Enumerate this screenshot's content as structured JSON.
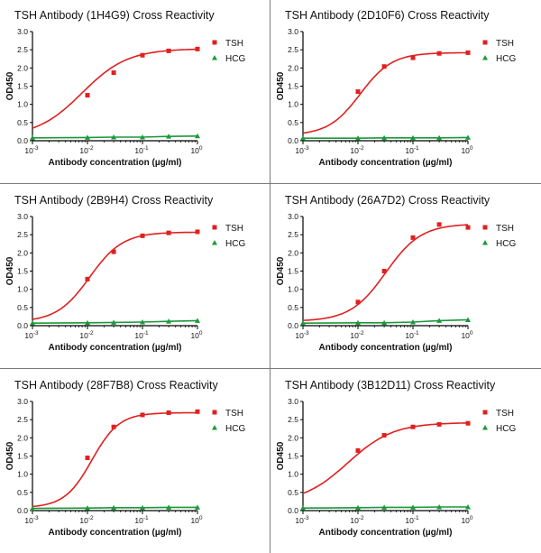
{
  "colors": {
    "tsh": "#e02020",
    "hcg": "#1a9a3a",
    "border": "#7a7a7a"
  },
  "chart_data": [
    {
      "type": "scatter",
      "title": "TSH Antibody (1H4G9) Cross Reactivity",
      "xlabel": "Antibody concentration (µg/ml)",
      "ylabel": "OD450",
      "x_scale": "log",
      "xlim": [
        0.001,
        1
      ],
      "ylim": [
        0,
        3
      ],
      "yticks": [
        "0.0",
        "0.5",
        "1.0",
        "1.5",
        "2.0",
        "2.5",
        "3.0"
      ],
      "xticks": [
        "10-3",
        "10-2",
        "10-1",
        "100"
      ],
      "legend": "top-right",
      "grid": false,
      "series": [
        {
          "name": "TSH",
          "marker": "square",
          "fit": {
            "bottom": 0.1,
            "top": 2.53,
            "ec50": 0.008,
            "hill": 1.05
          },
          "x": [
            0.01,
            0.03,
            0.1,
            0.3,
            1
          ],
          "y": [
            1.25,
            1.87,
            2.35,
            2.47,
            2.52
          ]
        },
        {
          "name": "HCG",
          "marker": "triangle",
          "x": [
            0.001,
            0.01,
            0.03,
            0.1,
            0.3,
            1
          ],
          "y": [
            0.08,
            0.09,
            0.1,
            0.1,
            0.12,
            0.13
          ]
        }
      ]
    },
    {
      "type": "scatter",
      "title": "TSH Antibody (2D10F6) Cross Reactivity",
      "xlabel": "Antibody concentration (µg/ml)",
      "ylabel": "OD450",
      "x_scale": "log",
      "xlim": [
        0.001,
        1
      ],
      "ylim": [
        0,
        3
      ],
      "yticks": [
        "0.0",
        "0.5",
        "1.0",
        "1.5",
        "2.0",
        "2.5",
        "3.0"
      ],
      "xticks": [
        "10-3",
        "10-2",
        "10-1",
        "100"
      ],
      "legend": "top-right",
      "grid": false,
      "series": [
        {
          "name": "TSH",
          "marker": "square",
          "fit": {
            "bottom": 0.15,
            "top": 2.42,
            "ec50": 0.011,
            "hill": 1.5
          },
          "x": [
            0.01,
            0.03,
            0.1,
            0.3,
            1
          ],
          "y": [
            1.35,
            2.04,
            2.28,
            2.4,
            2.42
          ]
        },
        {
          "name": "HCG",
          "marker": "triangle",
          "x": [
            0.001,
            0.01,
            0.03,
            0.1,
            0.3,
            1
          ],
          "y": [
            0.07,
            0.07,
            0.08,
            0.08,
            0.08,
            0.09
          ]
        }
      ]
    },
    {
      "type": "scatter",
      "title": "TSH Antibody (2B9H4) Cross Reactivity",
      "xlabel": "Antibody concentration (µg/ml)",
      "ylabel": "OD450",
      "x_scale": "log",
      "xlim": [
        0.001,
        1
      ],
      "ylim": [
        0,
        3
      ],
      "yticks": [
        "0.0",
        "0.5",
        "1.0",
        "1.5",
        "2.0",
        "2.5",
        "3.0"
      ],
      "xticks": [
        "10-3",
        "10-2",
        "10-1",
        "100"
      ],
      "legend": "top-right",
      "grid": false,
      "series": [
        {
          "name": "TSH",
          "marker": "square",
          "fit": {
            "bottom": 0.1,
            "top": 2.57,
            "ec50": 0.011,
            "hill": 1.45
          },
          "x": [
            0.01,
            0.03,
            0.1,
            0.3,
            1
          ],
          "y": [
            1.28,
            2.03,
            2.47,
            2.55,
            2.58
          ]
        },
        {
          "name": "HCG",
          "marker": "triangle",
          "x": [
            0.001,
            0.01,
            0.03,
            0.1,
            0.3,
            1
          ],
          "y": [
            0.07,
            0.08,
            0.09,
            0.1,
            0.12,
            0.14
          ]
        }
      ]
    },
    {
      "type": "scatter",
      "title": "TSH Antibody (26A7D2) Cross Reactivity",
      "xlabel": "Antibody concentration (µg/ml)",
      "ylabel": "OD450",
      "x_scale": "log",
      "xlim": [
        0.001,
        1
      ],
      "ylim": [
        0,
        3
      ],
      "yticks": [
        "0.0",
        "0.5",
        "1.0",
        "1.5",
        "2.0",
        "2.5",
        "3.0"
      ],
      "xticks": [
        "10-3",
        "10-2",
        "10-1",
        "100"
      ],
      "legend": "top-right",
      "grid": false,
      "series": [
        {
          "name": "TSH",
          "marker": "square",
          "fit": {
            "bottom": 0.12,
            "top": 2.8,
            "ec50": 0.032,
            "hill": 1.35
          },
          "x": [
            0.01,
            0.03,
            0.1,
            0.3,
            1
          ],
          "y": [
            0.65,
            1.5,
            2.42,
            2.78,
            2.7
          ]
        },
        {
          "name": "HCG",
          "marker": "triangle",
          "x": [
            0.001,
            0.01,
            0.03,
            0.1,
            0.3,
            1
          ],
          "y": [
            0.07,
            0.08,
            0.08,
            0.1,
            0.14,
            0.16
          ]
        }
      ]
    },
    {
      "type": "scatter",
      "title": "TSH Antibody (28F7B8) Cross Reactivity",
      "xlabel": "Antibody concentration (µg/ml)",
      "ylabel": "OD450",
      "x_scale": "log",
      "xlim": [
        0.001,
        1
      ],
      "ylim": [
        0,
        3
      ],
      "yticks": [
        "0.0",
        "0.5",
        "1.0",
        "1.5",
        "2.0",
        "2.5",
        "3.0"
      ],
      "xticks": [
        "10-3",
        "10-2",
        "10-1",
        "100"
      ],
      "legend": "top-right",
      "grid": false,
      "series": [
        {
          "name": "TSH",
          "marker": "square",
          "fit": {
            "bottom": 0.08,
            "top": 2.69,
            "ec50": 0.012,
            "hill": 1.75
          },
          "x": [
            0.01,
            0.03,
            0.1,
            0.3,
            1
          ],
          "y": [
            1.45,
            2.3,
            2.63,
            2.69,
            2.72
          ]
        },
        {
          "name": "HCG",
          "marker": "triangle",
          "x": [
            0.001,
            0.01,
            0.03,
            0.1,
            0.3,
            1
          ],
          "y": [
            0.06,
            0.07,
            0.08,
            0.08,
            0.09,
            0.09
          ]
        }
      ]
    },
    {
      "type": "scatter",
      "title": "TSH Antibody (3B12D11) Cross Reactivity",
      "xlabel": "Antibody concentration (µg/ml)",
      "ylabel": "OD450",
      "x_scale": "log",
      "xlim": [
        0.001,
        1
      ],
      "ylim": [
        0,
        3
      ],
      "yticks": [
        "0.0",
        "0.5",
        "1.0",
        "1.5",
        "2.0",
        "2.5",
        "3.0"
      ],
      "xticks": [
        "10-3",
        "10-2",
        "10-1",
        "100"
      ],
      "legend": "top-right",
      "grid": false,
      "series": [
        {
          "name": "TSH",
          "marker": "square",
          "fit": {
            "bottom": 0.2,
            "top": 2.42,
            "ec50": 0.0065,
            "hill": 1.05
          },
          "x": [
            0.01,
            0.03,
            0.1,
            0.3,
            1
          ],
          "y": [
            1.65,
            2.07,
            2.3,
            2.37,
            2.4
          ]
        },
        {
          "name": "HCG",
          "marker": "triangle",
          "x": [
            0.001,
            0.01,
            0.03,
            0.1,
            0.3,
            1
          ],
          "y": [
            0.07,
            0.08,
            0.09,
            0.09,
            0.1,
            0.1
          ]
        }
      ]
    }
  ]
}
